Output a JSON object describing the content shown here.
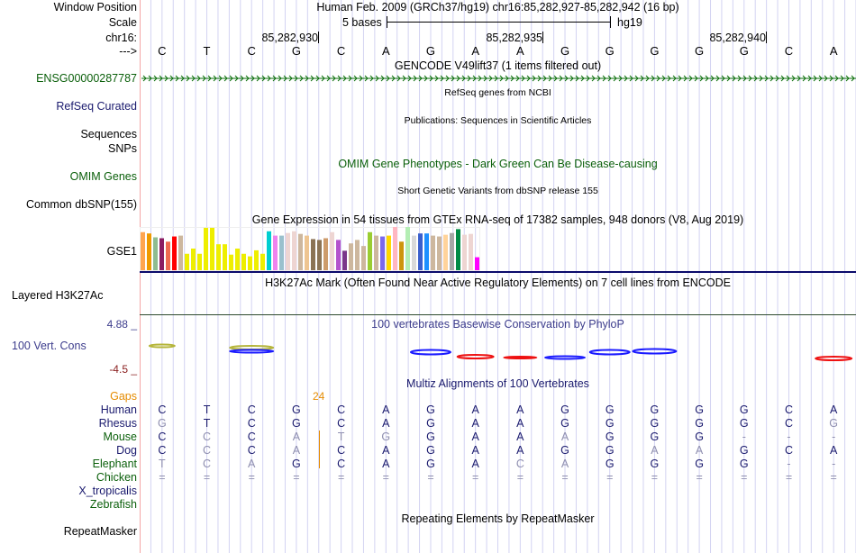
{
  "header": {
    "window_position_label": "Window Position",
    "scale_label": "Scale",
    "chrom_label": "chr16:",
    "strand_label": "--->",
    "assembly_title": "Human Feb. 2009 (GRCh37/hg19)   chr16:85,282,927-85,282,942 (16 bp)",
    "scale_text": "5 bases",
    "scale_db": "hg19",
    "positions": [
      "85,282,930",
      "85,282,935",
      "85,282,940"
    ]
  },
  "sequence": [
    "C",
    "T",
    "C",
    "G",
    "C",
    "A",
    "G",
    "A",
    "A",
    "G",
    "G",
    "G",
    "G",
    "G",
    "C",
    "A"
  ],
  "tracks": {
    "gencode": {
      "label": "ENSG00000287787",
      "title": "GENCODE V49lift37 (1 items filtered out)"
    },
    "refseq": {
      "label": "RefSeq Curated",
      "title": "RefSeq genes from NCBI"
    },
    "pubs": {
      "label1": "Sequences",
      "label2": "SNPs",
      "title": "Publications: Sequences in Scientific Articles"
    },
    "omim": {
      "label": "OMIM Genes",
      "title": "OMIM Gene Phenotypes - Dark Green Can Be Disease-causing"
    },
    "dbsnp": {
      "label": "Common dbSNP(155)",
      "title": "Short Genetic Variants from dbSNP release 155"
    },
    "gtex": {
      "label": "GSE1",
      "title": "Gene Expression in 54 tissues from GTEx RNA-seq of 17382 samples, 948 donors (V8, Aug 2019)"
    },
    "h3k27ac": {
      "label": "Layered H3K27Ac",
      "title": "H3K27Ac Mark (Often Found Near Active Regulatory Elements) on 7 cell lines from ENCODE"
    },
    "cons": {
      "label": "100 Vert. Cons",
      "title": "100 vertebrates Basewise Conservation by PhyloP",
      "max": "4.88 _",
      "min": "-4.5 _"
    },
    "multiz": {
      "title": "Multiz Alignments of 100 Vertebrates",
      "gaps_label": "Gaps",
      "gap_count": "24"
    },
    "rmsk": {
      "label": "RepeatMasker",
      "title": "Repeating Elements by RepeatMasker"
    }
  },
  "gtex_bars": {
    "relative_heights": [
      0.88,
      0.85,
      0.76,
      0.74,
      0.66,
      0.78,
      0.8,
      0.38,
      0.5,
      0.38,
      0.98,
      0.98,
      0.6,
      0.6,
      0.36,
      0.5,
      0.38,
      0.32,
      0.46,
      0.38,
      0.9,
      0.8,
      0.8,
      0.86,
      0.9,
      0.84,
      0.8,
      0.72,
      0.7,
      0.74,
      0.88,
      0.7,
      0.45,
      0.62,
      0.7,
      0.56,
      0.88,
      0.8,
      0.78,
      0.8,
      1.0,
      0.66,
      1.0,
      0.8,
      0.85,
      0.85,
      0.8,
      0.78,
      0.82,
      0.86,
      0.95,
      0.82,
      0.84,
      0.3
    ],
    "colors": [
      "#ffa54f",
      "#ee9a00",
      "#8fbc8f",
      "#8b1c62",
      "#ee6a50",
      "#ff0000",
      "#cdb79e",
      "#eeee00",
      "#eeee00",
      "#eeee00",
      "#eeee00",
      "#eeee00",
      "#eeee00",
      "#eeee00",
      "#eeee00",
      "#eeee00",
      "#eeee00",
      "#eeee00",
      "#eeee00",
      "#eeee00",
      "#00ced1",
      "#ee82ee",
      "#9ac0cd",
      "#eed5d2",
      "#eed5d2",
      "#cdb79e",
      "#eec591",
      "#8b7355",
      "#8b7355",
      "#cd9b6b",
      "#eed5d2",
      "#b452cd",
      "#7a378b",
      "#cdb79e",
      "#cdb79e",
      "#cdb79e",
      "#9acd32",
      "#cdb79e",
      "#7b68ee",
      "#ffd700",
      "#ffb6c1",
      "#cd950c",
      "#b4eeb4",
      "#d9d9d9",
      "#3a5fcd",
      "#1e90ff",
      "#cdb79e",
      "#cdb79e",
      "#ffd39b",
      "#a6a6a6",
      "#008b45",
      "#eed5d2",
      "#eed5d2",
      "#ff00ff"
    ]
  },
  "multiz_rows": [
    {
      "species": "Human",
      "color": "#1a1a6e",
      "bases": [
        "C",
        "T",
        "C",
        "G",
        "C",
        "A",
        "G",
        "A",
        "A",
        "G",
        "G",
        "G",
        "G",
        "G",
        "C",
        "A"
      ],
      "dim": []
    },
    {
      "species": "Rhesus",
      "color": "#1a1a6e",
      "bases": [
        "G",
        "T",
        "C",
        "G",
        "C",
        "A",
        "G",
        "A",
        "A",
        "G",
        "G",
        "G",
        "G",
        "G",
        "C",
        "G"
      ],
      "dim": [
        0,
        15
      ]
    },
    {
      "species": "Mouse",
      "color": "#0a5f0a",
      "bases": [
        "C",
        "C",
        "C",
        "A",
        "T",
        "G",
        "G",
        "A",
        "A",
        "A",
        "G",
        "G",
        "G",
        "-",
        "-",
        "-"
      ],
      "dim": [
        1,
        3,
        4,
        5,
        9,
        13,
        14,
        15
      ]
    },
    {
      "species": "Dog",
      "color": "#1a1a6e",
      "bases": [
        "C",
        "C",
        "C",
        "A",
        "C",
        "A",
        "G",
        "A",
        "A",
        "G",
        "G",
        "A",
        "A",
        "G",
        "C",
        "A"
      ],
      "dim": [
        1,
        3,
        11,
        12
      ]
    },
    {
      "species": "Elephant",
      "color": "#0a5f0a",
      "bases": [
        "T",
        "C",
        "A",
        "G",
        "C",
        "A",
        "G",
        "A",
        "C",
        "A",
        "G",
        "G",
        "G",
        "G",
        "-",
        "-"
      ],
      "dim": [
        0,
        1,
        2,
        8,
        9,
        14,
        15
      ]
    },
    {
      "species": "Chicken",
      "color": "#0a5f0a",
      "bases": [
        "=",
        "=",
        "=",
        "=",
        "=",
        "=",
        "=",
        "=",
        "=",
        "=",
        "=",
        "=",
        "=",
        "=",
        "=",
        "="
      ],
      "dim": [
        0,
        1,
        2,
        3,
        4,
        5,
        6,
        7,
        8,
        9,
        10,
        11,
        12,
        13,
        14,
        15
      ]
    },
    {
      "species": "X_tropicalis",
      "color": "#1a1a6e",
      "bases": [],
      "dim": []
    },
    {
      "species": "Zebrafish",
      "color": "#0a5f0a",
      "bases": [],
      "dim": []
    }
  ]
}
